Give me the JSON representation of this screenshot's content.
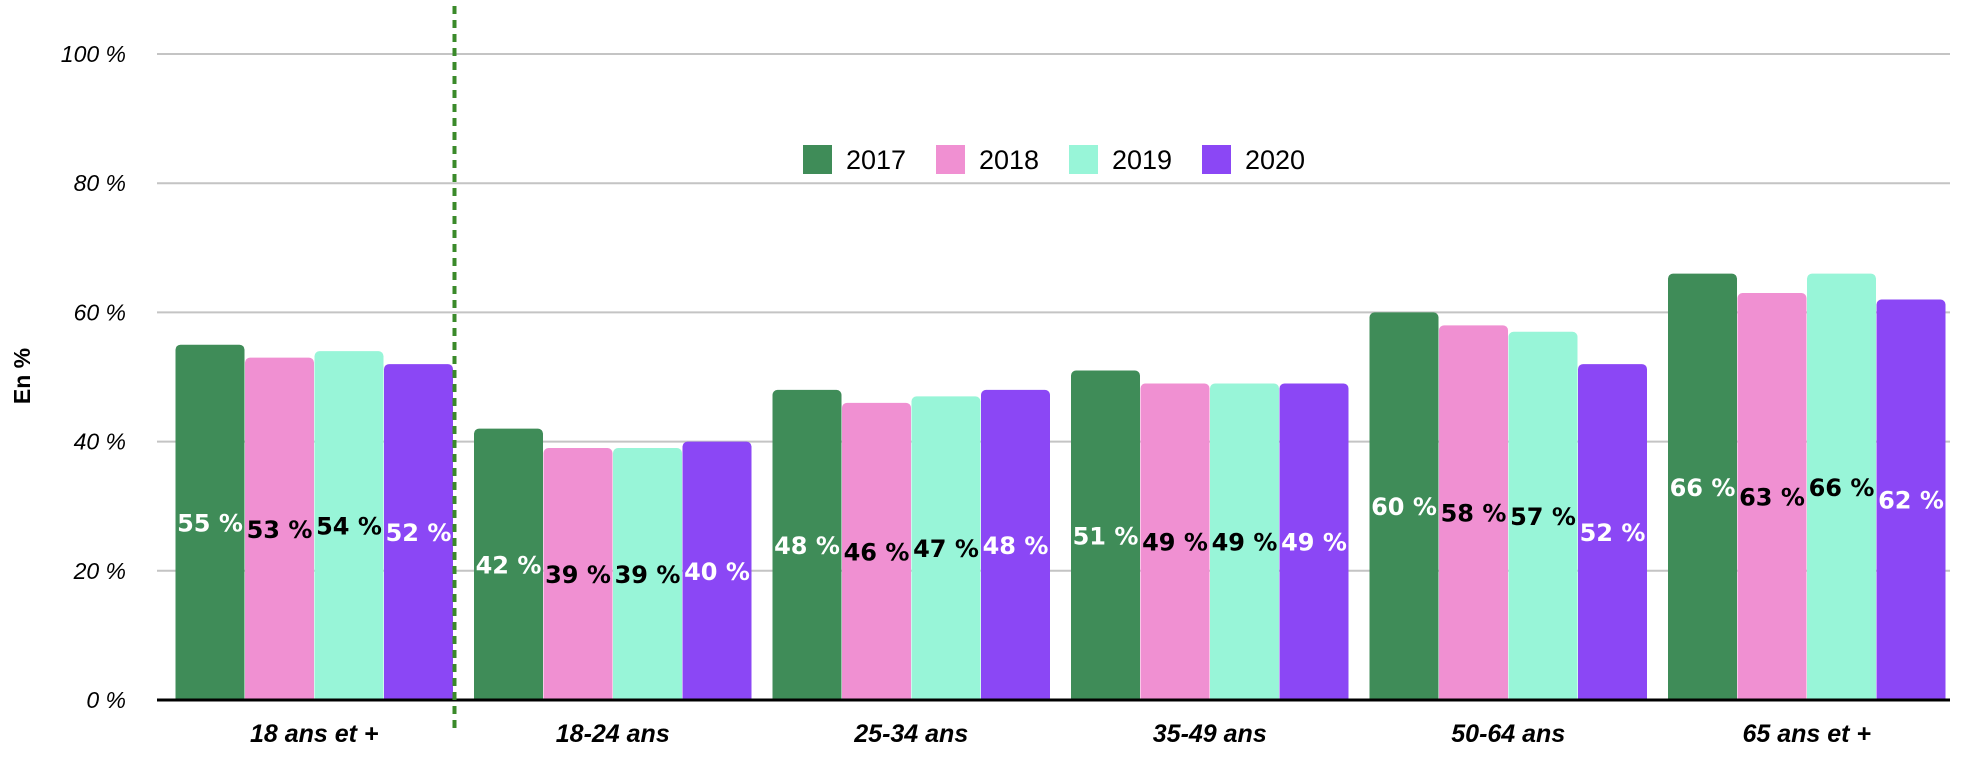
{
  "chart_data": {
    "type": "bar",
    "title": "",
    "xlabel": "",
    "ylabel": "En %",
    "ylim": [
      0,
      100
    ],
    "yticks": [
      0,
      20,
      40,
      60,
      80,
      100
    ],
    "ytick_labels": [
      "0 %",
      "20 %",
      "40 %",
      "60 %",
      "80 %",
      "100 %"
    ],
    "grid": true,
    "legend_position": "top-center",
    "categories": [
      "18 ans et +",
      "18-24 ans",
      "25-34 ans",
      "35-49 ans",
      "50-64 ans",
      "65 ans et +"
    ],
    "series": [
      {
        "name": "2017",
        "color": "#3f8c58",
        "label_color": "#ffffff",
        "values": [
          55,
          42,
          48,
          51,
          60,
          66
        ],
        "labels": [
          "55 %",
          "42 %",
          "48 %",
          "51 %",
          "60 %",
          "66 %"
        ]
      },
      {
        "name": "2018",
        "color": "#f090d2",
        "label_color": "#000000",
        "values": [
          53,
          39,
          46,
          49,
          58,
          63
        ],
        "labels": [
          "53 %",
          "39 %",
          "46 %",
          "49 %",
          "58 %",
          "63 %"
        ]
      },
      {
        "name": "2019",
        "color": "#98f5d8",
        "label_color": "#000000",
        "values": [
          54,
          39,
          47,
          49,
          57,
          66
        ],
        "labels": [
          "54 %",
          "39 %",
          "47 %",
          "49 %",
          "57 %",
          "66 %"
        ]
      },
      {
        "name": "2020",
        "color": "#8b47f5",
        "label_color": "#ffffff",
        "values": [
          52,
          40,
          48,
          49,
          52,
          62
        ],
        "labels": [
          "52 %",
          "40 %",
          "48 %",
          "49 %",
          "52 %",
          "62 %"
        ]
      }
    ],
    "separator": {
      "after_category_index": 0,
      "style": "dashed",
      "color": "#3a8a2a"
    },
    "colors": {
      "grid": "#c4c4c4",
      "axis": "#000000"
    }
  }
}
